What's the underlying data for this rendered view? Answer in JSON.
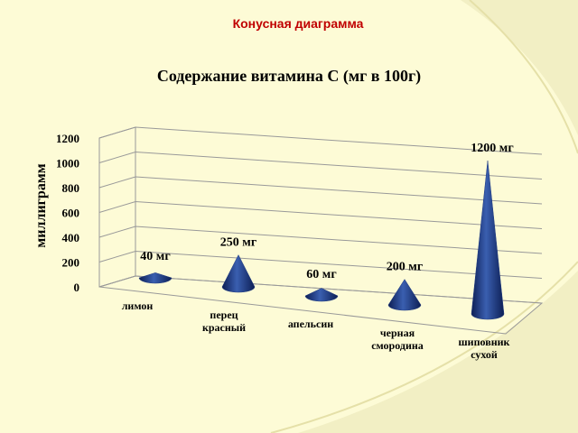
{
  "slide_title": "Конусная диаграмма",
  "chart_data": {
    "type": "cone",
    "title": "Содержание витамина С (мг в 100г)",
    "y_label": "миллиграмм",
    "categories": [
      "лимон",
      "перец красный",
      "апельсин",
      "черная смородина",
      "шиповник сухой"
    ],
    "values": [
      40,
      250,
      60,
      200,
      1200
    ],
    "value_labels": [
      "40 мг",
      "250 мг",
      "60 мг",
      "200 мг",
      "1200 мг"
    ],
    "color": "#1f3a80",
    "ylim": [
      0,
      1200
    ],
    "yticks": [
      0,
      200,
      400,
      600,
      800,
      1000,
      1200
    ],
    "grid": true
  }
}
